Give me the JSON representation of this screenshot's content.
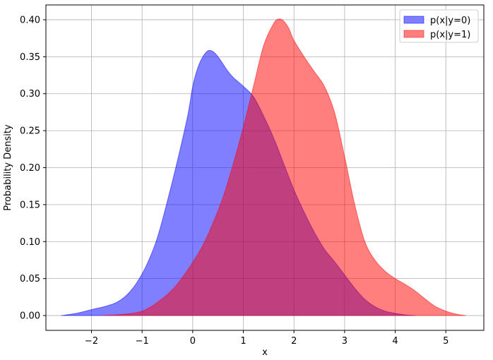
{
  "chart_data": {
    "type": "area",
    "title": "",
    "xlabel": "x",
    "ylabel": "Probability Density",
    "xlim": [
      -2.9,
      5.75
    ],
    "ylim": [
      -0.02,
      0.42
    ],
    "xticks": [
      -2,
      -1,
      0,
      1,
      2,
      3,
      4,
      5
    ],
    "xtick_labels": [
      "−2",
      "−1",
      "0",
      "1",
      "2",
      "3",
      "4",
      "5"
    ],
    "yticks": [
      0.0,
      0.05,
      0.1,
      0.15,
      0.2,
      0.25,
      0.3,
      0.35,
      0.4
    ],
    "ytick_labels": [
      "0.00",
      "0.05",
      "0.10",
      "0.15",
      "0.20",
      "0.25",
      "0.30",
      "0.35",
      "0.40"
    ],
    "grid": true,
    "legend_position": "top-right",
    "series": [
      {
        "name": "p(x|y=0)",
        "color": "#0000ff",
        "alpha": 0.5,
        "x": [
          -2.6,
          -2.3,
          -2.0,
          -1.7,
          -1.5,
          -1.3,
          -1.1,
          -0.9,
          -0.7,
          -0.5,
          -0.3,
          -0.1,
          0.0,
          0.1,
          0.2,
          0.3,
          0.4,
          0.5,
          0.6,
          0.7,
          0.8,
          0.9,
          1.0,
          1.2,
          1.4,
          1.6,
          1.8,
          2.0,
          2.2,
          2.4,
          2.6,
          2.8,
          3.0,
          3.2,
          3.4,
          3.6,
          3.8,
          4.0,
          4.2,
          4.4
        ],
        "values": [
          0.0,
          0.003,
          0.008,
          0.013,
          0.018,
          0.028,
          0.045,
          0.07,
          0.105,
          0.155,
          0.21,
          0.27,
          0.31,
          0.335,
          0.35,
          0.358,
          0.357,
          0.35,
          0.34,
          0.33,
          0.322,
          0.316,
          0.31,
          0.296,
          0.27,
          0.24,
          0.205,
          0.17,
          0.14,
          0.113,
          0.09,
          0.073,
          0.055,
          0.037,
          0.022,
          0.012,
          0.006,
          0.003,
          0.001,
          0.0
        ]
      },
      {
        "name": "p(x|y=1)",
        "color": "#ff0000",
        "alpha": 0.5,
        "x": [
          -1.8,
          -1.5,
          -1.2,
          -1.0,
          -0.8,
          -0.6,
          -0.4,
          -0.2,
          0.0,
          0.2,
          0.4,
          0.6,
          0.8,
          1.0,
          1.2,
          1.4,
          1.6,
          1.7,
          1.8,
          1.9,
          2.0,
          2.2,
          2.4,
          2.6,
          2.8,
          3.0,
          3.2,
          3.4,
          3.6,
          3.8,
          4.0,
          4.2,
          4.4,
          4.6,
          4.8,
          5.0,
          5.2,
          5.4
        ],
        "values": [
          0.0,
          0.001,
          0.003,
          0.006,
          0.013,
          0.023,
          0.035,
          0.052,
          0.072,
          0.095,
          0.125,
          0.16,
          0.205,
          0.255,
          0.31,
          0.365,
          0.395,
          0.401,
          0.398,
          0.388,
          0.372,
          0.35,
          0.33,
          0.31,
          0.275,
          0.215,
          0.15,
          0.1,
          0.075,
          0.06,
          0.05,
          0.042,
          0.033,
          0.022,
          0.012,
          0.006,
          0.002,
          0.0
        ]
      }
    ]
  }
}
